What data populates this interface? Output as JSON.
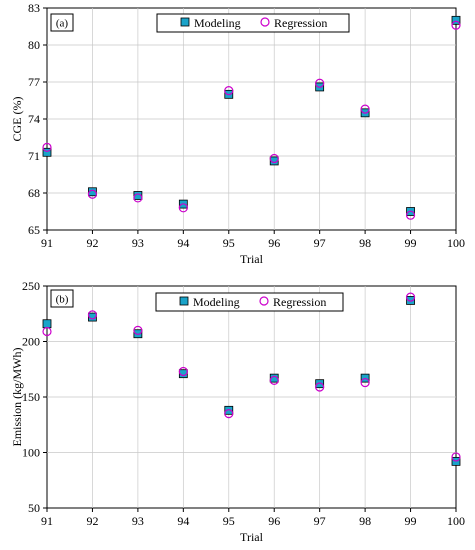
{
  "chart_data": [
    {
      "type": "scatter",
      "panel_label": "(a)",
      "xlabel": "Trial",
      "ylabel": "CGE  (%)",
      "x": [
        91,
        92,
        93,
        94,
        95,
        96,
        97,
        98,
        99,
        100
      ],
      "xlim": [
        91,
        100
      ],
      "ylim": [
        65,
        83
      ],
      "yticks": [
        65,
        68,
        71,
        74,
        77,
        80,
        83
      ],
      "xticks": [
        91,
        92,
        93,
        94,
        95,
        96,
        97,
        98,
        99,
        100
      ],
      "grid": true,
      "legend_position": "top-center",
      "series": [
        {
          "name": "Modeling",
          "marker": "square",
          "color": "#1aa3c9",
          "values": [
            71.3,
            68.1,
            67.8,
            67.1,
            76.0,
            70.6,
            76.6,
            74.5,
            66.5,
            82.0
          ]
        },
        {
          "name": "Regression",
          "marker": "circle",
          "color": "#cc00cc",
          "values": [
            71.7,
            67.9,
            67.6,
            66.8,
            76.3,
            70.8,
            76.9,
            74.8,
            66.2,
            81.6
          ]
        }
      ]
    },
    {
      "type": "scatter",
      "panel_label": "(b)",
      "xlabel": "Trial",
      "ylabel": "Emission  (kg/MWh)",
      "x": [
        91,
        92,
        93,
        94,
        95,
        96,
        97,
        98,
        99,
        100
      ],
      "xlim": [
        91,
        100
      ],
      "ylim": [
        50,
        250
      ],
      "yticks": [
        50,
        100,
        150,
        200,
        250
      ],
      "xticks": [
        91,
        92,
        93,
        94,
        95,
        96,
        97,
        98,
        99,
        100
      ],
      "grid": true,
      "legend_position": "top-center",
      "series": [
        {
          "name": "Modeling",
          "marker": "square",
          "color": "#1aa3c9",
          "values": [
            216,
            222,
            207,
            171,
            138,
            167,
            162,
            167,
            237,
            92
          ]
        },
        {
          "name": "Regression",
          "marker": "circle",
          "color": "#cc00cc",
          "values": [
            209,
            224,
            210,
            173,
            135,
            165,
            159,
            163,
            240,
            96
          ]
        }
      ]
    }
  ]
}
